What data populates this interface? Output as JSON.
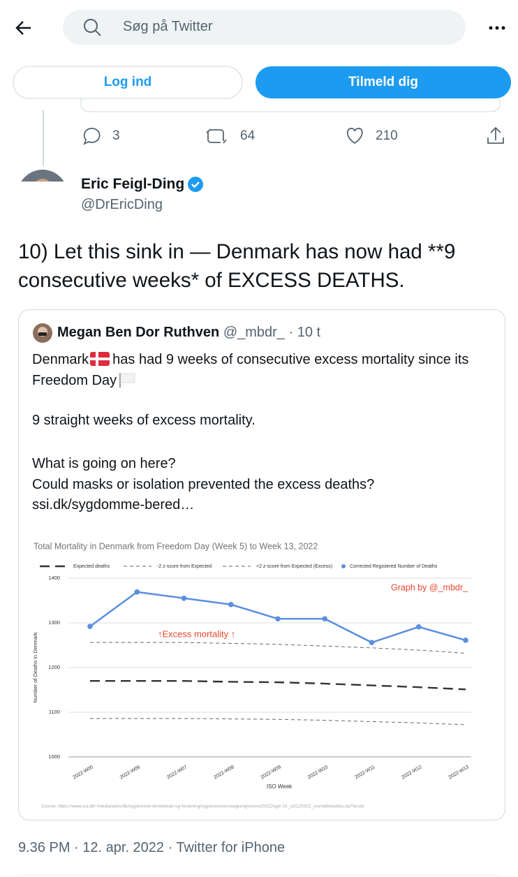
{
  "header": {
    "search_placeholder": "Søg på Twitter"
  },
  "auth": {
    "login": "Log ind",
    "signup": "Tilmeld dig"
  },
  "previous_tweet": {
    "replies": 3,
    "retweets": 64,
    "likes": 210
  },
  "tweet": {
    "name": "Eric Feigl-Ding",
    "handle": "@DrEricDing",
    "text": "10) Let this sink in — Denmark has now had **9 consecutive weeks* of EXCESS DEATHS.",
    "timestamp": "9.36 PM · 12. apr. 2022 · Twitter for iPhone"
  },
  "quoted_tweet": {
    "name": "Megan Ben Dor Ruthven",
    "handle": "@_mbdr_",
    "time": "· 10 t",
    "intro": [
      "Denmark",
      "has had 9 weeks of consecutive excess mortality since its Freedom Day"
    ],
    "paragraph": "9 straight weeks of excess mortality.",
    "lines": [
      "What is going on here?",
      "Could masks or isolation prevented the excess deaths?",
      "ssi.dk/sygdomme-bered…"
    ]
  },
  "chart_data": {
    "type": "line",
    "title": "Total Mortality in Denmark from Freedom Day (Week 5) to Week 13, 2022",
    "x_label": "ISO Week",
    "y_label": "Number of Deaths in Denmark",
    "categories": [
      "2022-W05",
      "2022-W06",
      "2022-W07",
      "2022-W08",
      "2022-W09",
      "2022-W10",
      "2022-W11",
      "2022-W12",
      "2022-W13"
    ],
    "series": [
      {
        "name": "Expected deaths",
        "color": "#333333",
        "values": [
          1170,
          1170,
          1170,
          1168,
          1167,
          1164,
          1160,
          1156,
          1151
        ]
      },
      {
        "name": "-2 z-score from Expected",
        "color": "#666666",
        "values": [
          1086,
          1086,
          1086,
          1085,
          1084,
          1082,
          1079,
          1076,
          1072
        ]
      },
      {
        "name": "+2 z-score from Expected (Excess)",
        "color": "#666666",
        "values": [
          1256,
          1256,
          1256,
          1254,
          1252,
          1248,
          1244,
          1239,
          1232
        ]
      },
      {
        "name": "Corrected Registered Number of Deaths",
        "color": "#5b8fe0",
        "values": [
          1292,
          1369,
          1355,
          1341,
          1309,
          1309,
          1256,
          1291,
          1261
        ]
      }
    ],
    "ylim": [
      1000,
      1400
    ],
    "yticks": [
      1000,
      1100,
      1200,
      1300,
      1400
    ],
    "grid": true,
    "annotation": "↑Excess mortality ↑",
    "credit": "Graph by @_mbdr_",
    "source": "Source: https://www.ssi.dk/-/media/arkiv/dk/sygdomme-beredskab-og-forskning/sygdomsovervaagning/momo/2022/uge-15_v2/120422_mortalitetsdata.zip?la=da"
  }
}
